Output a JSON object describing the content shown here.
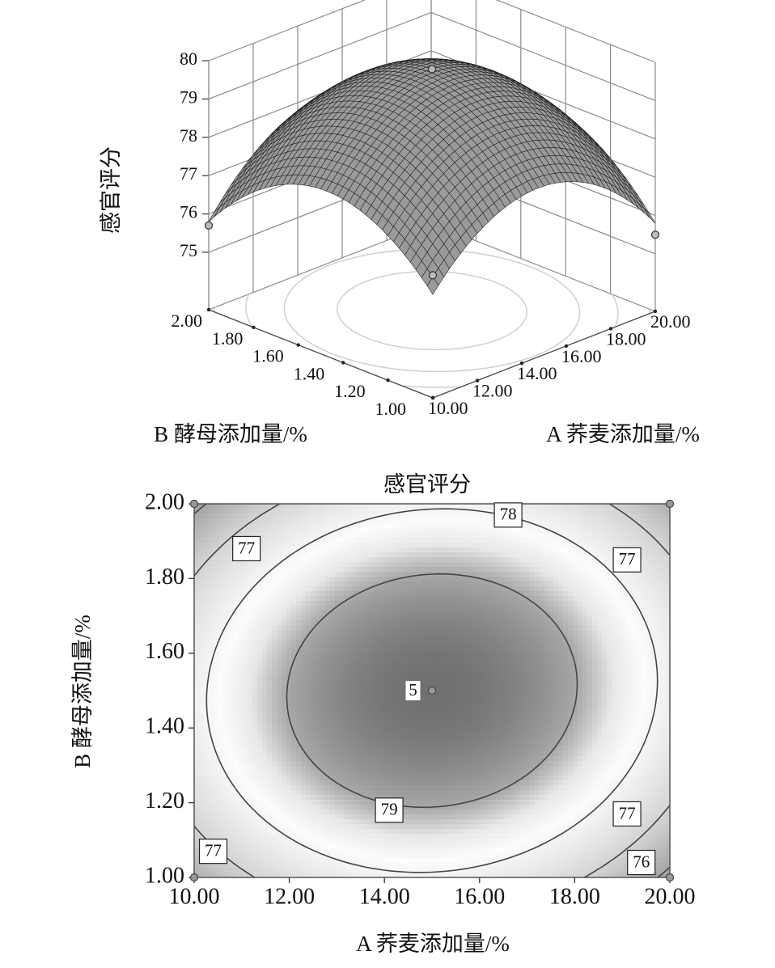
{
  "chart_data": [
    {
      "type": "surface3d",
      "zlabel": "感官评分",
      "xlabel": "A 荞麦添加量/%",
      "ylabel": "B 酵母添加量/%",
      "xlim": [
        10,
        20
      ],
      "ylim": [
        1,
        2
      ],
      "zlim": [
        73.5,
        80
      ],
      "xticks": [
        {
          "value": 10,
          "label": "10.00"
        },
        {
          "value": 12,
          "label": "12.00"
        },
        {
          "value": 14,
          "label": "14.00"
        },
        {
          "value": 16,
          "label": "16.00"
        },
        {
          "value": 18,
          "label": "18.00"
        },
        {
          "value": 20,
          "label": "20.00"
        }
      ],
      "yticks": [
        {
          "value": 1,
          "label": "1.00"
        },
        {
          "value": 1.2,
          "label": "1.20"
        },
        {
          "value": 1.4,
          "label": "1.40"
        },
        {
          "value": 1.6,
          "label": "1.60"
        },
        {
          "value": 1.8,
          "label": "1.80"
        },
        {
          "value": 2,
          "label": "2.00"
        }
      ],
      "zticks": [
        75,
        76,
        77,
        78,
        79,
        80
      ],
      "grid_x": [
        10,
        12.5,
        15,
        17.5,
        20
      ],
      "grid_y": [
        1,
        1.25,
        1.5,
        1.75,
        2
      ],
      "z": [
        [
          76.2,
          77.53,
          77.9,
          77.33,
          75.8
        ],
        [
          77.45,
          78.83,
          79.25,
          78.73,
          77.25
        ],
        [
          77.8,
          79.23,
          79.7,
          79.23,
          77.8
        ],
        [
          77.25,
          78.73,
          79.25,
          78.83,
          77.45
        ],
        [
          75.8,
          77.33,
          77.9,
          77.53,
          76.2
        ]
      ],
      "levels": [
        76,
        77,
        78,
        79
      ],
      "color": "#9a9a9a",
      "points": {
        "x": [
          15,
          10,
          20,
          10
        ],
        "y": [
          1.5,
          2,
          1,
          1
        ],
        "z": [
          79.8,
          75.7,
          75.5,
          76.7
        ]
      }
    },
    {
      "type": "contour",
      "title": "感官评分",
      "xlabel": "A 荞麦添加量/%",
      "ylabel": "B 酵母添加量/%",
      "xlim": [
        10,
        20
      ],
      "ylim": [
        1,
        2
      ],
      "xticks": [
        {
          "value": 10,
          "label": "10.00"
        },
        {
          "value": 12,
          "label": "12.00"
        },
        {
          "value": 14,
          "label": "14.00"
        },
        {
          "value": 16,
          "label": "16.00"
        },
        {
          "value": 18,
          "label": "18.00"
        },
        {
          "value": 20,
          "label": "20.00"
        }
      ],
      "yticks": [
        {
          "value": 1,
          "label": "1.00"
        },
        {
          "value": 1.2,
          "label": "1.20"
        },
        {
          "value": 1.4,
          "label": "1.40"
        },
        {
          "value": 1.6,
          "label": "1.60"
        },
        {
          "value": 1.8,
          "label": "1.80"
        },
        {
          "value": 2,
          "label": "2.00"
        }
      ],
      "grid_x": [
        10,
        12.5,
        15,
        17.5,
        20
      ],
      "grid_y": [
        1,
        1.25,
        1.5,
        1.75,
        2
      ],
      "z": [
        [
          76.2,
          77.53,
          77.9,
          77.33,
          75.8
        ],
        [
          77.45,
          78.83,
          79.25,
          78.73,
          77.25
        ],
        [
          77.8,
          79.23,
          79.7,
          79.23,
          77.8
        ],
        [
          77.25,
          78.73,
          79.25,
          78.83,
          77.45
        ],
        [
          75.8,
          77.33,
          77.9,
          77.53,
          76.2
        ]
      ],
      "levels": [
        76,
        77,
        78,
        79
      ],
      "contour_labels": [
        77,
        78,
        77,
        79,
        77,
        77,
        76
      ],
      "center_runs": 5,
      "points": {
        "x": [
          10,
          20,
          10,
          20,
          15
        ],
        "y": [
          1,
          1,
          2,
          2,
          1.5
        ]
      }
    }
  ]
}
